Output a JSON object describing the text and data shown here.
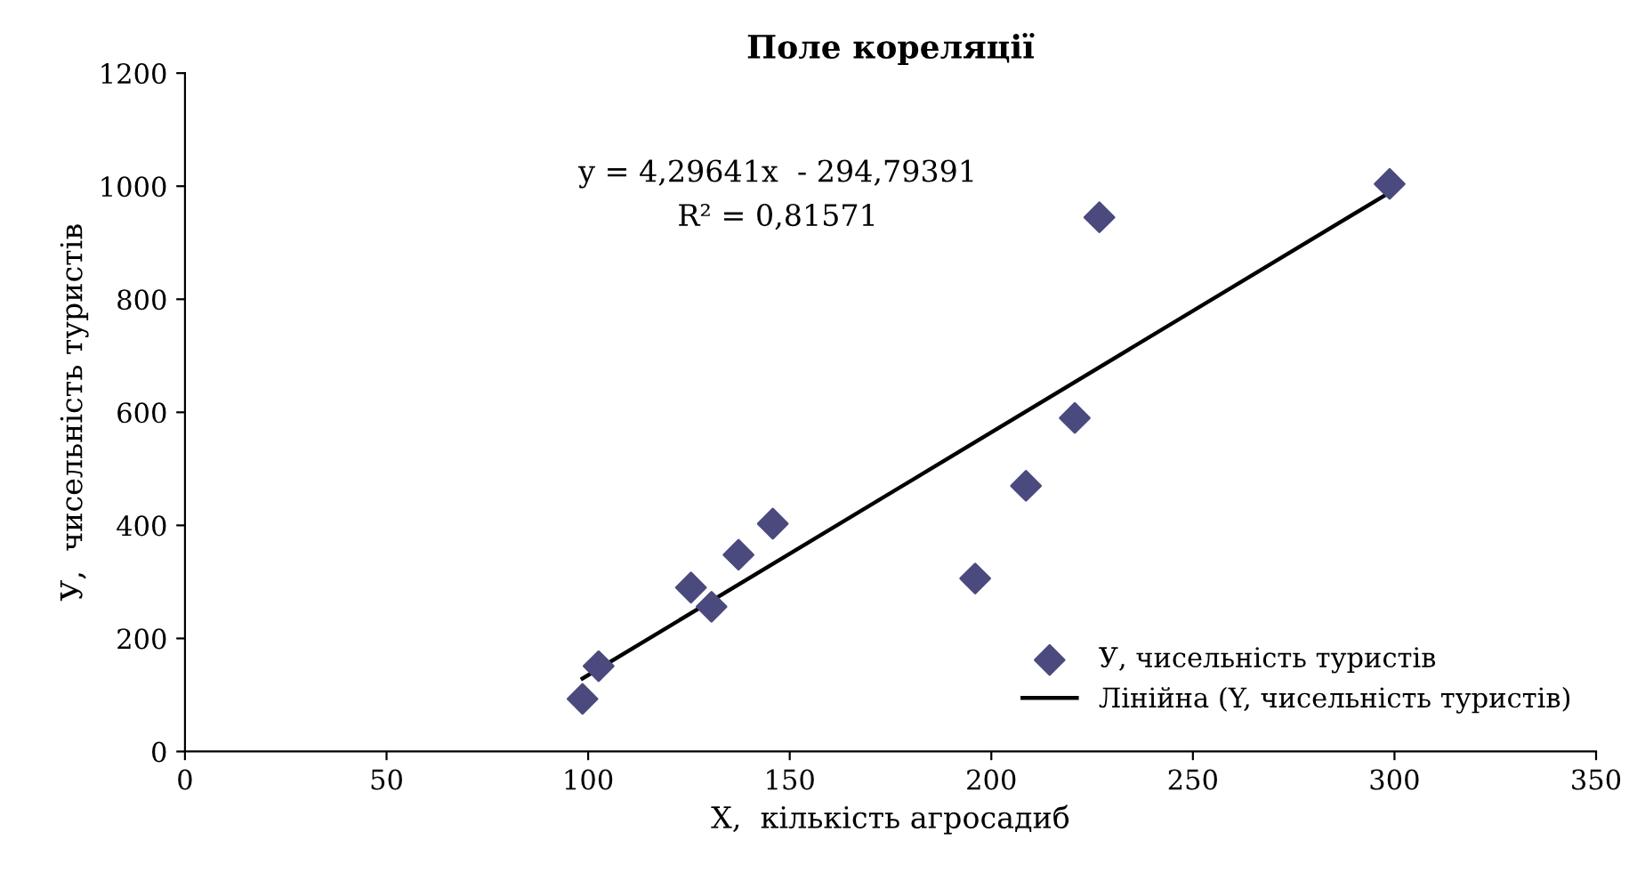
{
  "chart_data": {
    "type": "scatter",
    "title": "Поле кореляції",
    "xlabel": "X,  кількість агросадиб",
    "ylabel": "У,  чисельність туристів",
    "xlim": [
      0,
      350
    ],
    "xticks": [
      0,
      50,
      100,
      150,
      200,
      250,
      300,
      350
    ],
    "ylim": [
      0,
      1200
    ],
    "yticks": [
      0,
      200,
      400,
      600,
      800,
      1000,
      1200
    ],
    "grid": false,
    "legend": "bottom right",
    "annotations": [
      "y = 4,29641x  - 294,79391",
      "R² = 0,81571"
    ],
    "series": [
      {
        "name": "У, чисельність туристів",
        "marker": "diamond",
        "color": "#4b4a7f",
        "x": [
          98.6,
          102.6,
          125.5,
          130.6,
          137.3,
          145.8,
          196,
          208.6,
          220.7,
          226.8,
          298.8
        ],
        "values": [
          93,
          151,
          290,
          256,
          348,
          403,
          306,
          470,
          590,
          945,
          1004
        ]
      },
      {
        "name": "Лінійна (Y, чисельність туристів)",
        "type": "line",
        "marker": "none",
        "line_style": "solid",
        "color": "#000000",
        "x": [
          98.6,
          298.8
        ],
        "values": [
          129,
          989
        ]
      }
    ]
  }
}
